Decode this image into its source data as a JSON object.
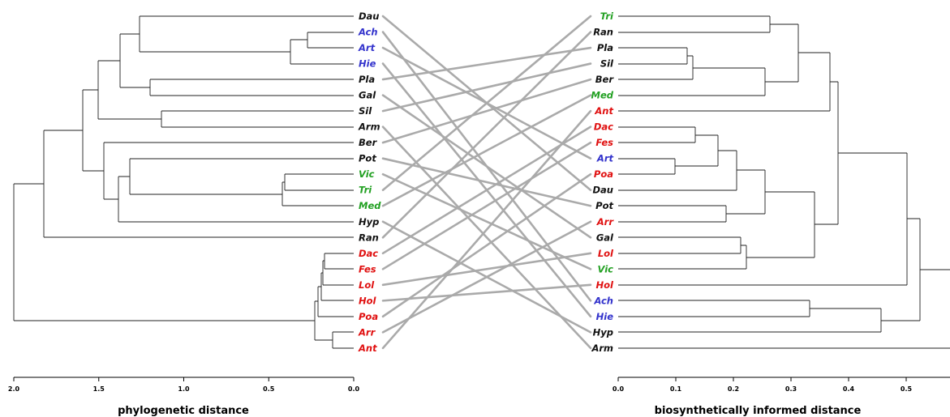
{
  "colors": {
    "black": "#111111",
    "blue": "#3333cc",
    "green": "#22a022",
    "red": "#e01010",
    "connector": "#aaaaaa"
  },
  "left": {
    "title": "phylogenetic distance",
    "ticks": [
      "2.0",
      "1.5",
      "1.0",
      "0.5",
      "0.0"
    ],
    "leaves": [
      {
        "label": "Dau",
        "color": "black"
      },
      {
        "label": "Ach",
        "color": "blue"
      },
      {
        "label": "Art",
        "color": "blue"
      },
      {
        "label": "Hie",
        "color": "blue"
      },
      {
        "label": "Pla",
        "color": "black"
      },
      {
        "label": "Gal",
        "color": "black"
      },
      {
        "label": "Sil",
        "color": "black"
      },
      {
        "label": "Arm",
        "color": "black"
      },
      {
        "label": "Ber",
        "color": "black"
      },
      {
        "label": "Pot",
        "color": "black"
      },
      {
        "label": "Vic",
        "color": "green"
      },
      {
        "label": "Tri",
        "color": "green"
      },
      {
        "label": "Med",
        "color": "green"
      },
      {
        "label": "Hyp",
        "color": "black"
      },
      {
        "label": "Ran",
        "color": "black"
      },
      {
        "label": "Dac",
        "color": "red"
      },
      {
        "label": "Fes",
        "color": "red"
      },
      {
        "label": "Lol",
        "color": "red"
      },
      {
        "label": "Hol",
        "color": "red"
      },
      {
        "label": "Poa",
        "color": "red"
      },
      {
        "label": "Arr",
        "color": "red"
      },
      {
        "label": "Ant",
        "color": "red"
      }
    ]
  },
  "right": {
    "title": "biosynthetically informed distance",
    "ticks": [
      "0.0",
      "0.1",
      "0.2",
      "0.3",
      "0.4",
      "0.5"
    ],
    "leaves": [
      {
        "label": "Tri",
        "color": "green"
      },
      {
        "label": "Ran",
        "color": "black"
      },
      {
        "label": "Pla",
        "color": "black"
      },
      {
        "label": "Sil",
        "color": "black"
      },
      {
        "label": "Ber",
        "color": "black"
      },
      {
        "label": "Med",
        "color": "green"
      },
      {
        "label": "Ant",
        "color": "red"
      },
      {
        "label": "Dac",
        "color": "red"
      },
      {
        "label": "Fes",
        "color": "red"
      },
      {
        "label": "Art",
        "color": "blue"
      },
      {
        "label": "Poa",
        "color": "red"
      },
      {
        "label": "Dau",
        "color": "black"
      },
      {
        "label": "Pot",
        "color": "black"
      },
      {
        "label": "Arr",
        "color": "red"
      },
      {
        "label": "Gal",
        "color": "black"
      },
      {
        "label": "Lol",
        "color": "red"
      },
      {
        "label": "Vic",
        "color": "green"
      },
      {
        "label": "Hol",
        "color": "red"
      },
      {
        "label": "Ach",
        "color": "blue"
      },
      {
        "label": "Hie",
        "color": "blue"
      },
      {
        "label": "Hyp",
        "color": "black"
      },
      {
        "label": "Arm",
        "color": "black"
      }
    ]
  }
}
